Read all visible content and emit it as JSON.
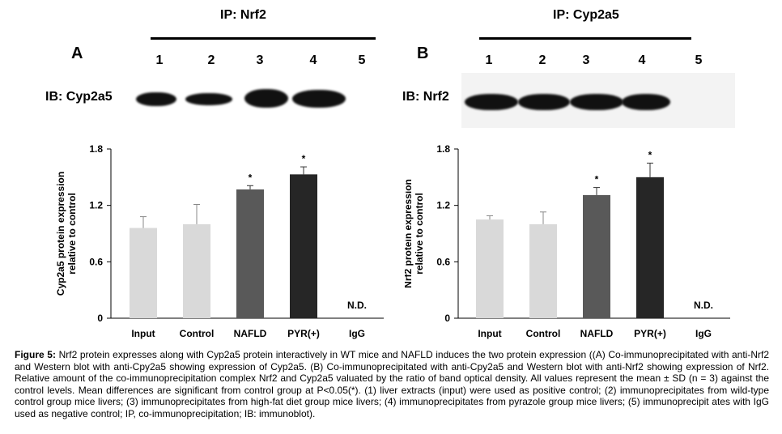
{
  "panel_a": {
    "letter": "A",
    "ip_label": "IP: Nrf2",
    "ib_label": "IB: Cyp2a5",
    "lanes": [
      "1",
      "2",
      "3",
      "4",
      "5"
    ]
  },
  "panel_b": {
    "letter": "B",
    "ip_label": "IP: Cyp2a5",
    "ib_label": "IB: Nrf2",
    "lanes": [
      "1",
      "2",
      "3",
      "4",
      "5"
    ]
  },
  "chart_data": [
    {
      "type": "bar",
      "ylabel": "Cyp2a5 protein expression relative to control",
      "ylabel_lines": [
        "Cyp2a5 protein expression",
        "relative to control"
      ],
      "categories": [
        "Input",
        "Control",
        "NAFLD",
        "PYR(+)",
        "IgG"
      ],
      "values": [
        0.96,
        1.0,
        1.37,
        1.53,
        null
      ],
      "errors": [
        0.12,
        0.21,
        0.04,
        0.08,
        null
      ],
      "significant": [
        false,
        false,
        true,
        true,
        false
      ],
      "annotations": [
        "",
        "",
        "*",
        "*",
        "N.D."
      ],
      "colors": [
        "#d9d9d9",
        "#d9d9d9",
        "#595959",
        "#262626",
        "#ffffff"
      ],
      "ylim": [
        0,
        1.8
      ],
      "yticks": [
        "0",
        "0.6",
        "1.2",
        "1.8"
      ],
      "grid": false
    },
    {
      "type": "bar",
      "ylabel": "Nrf2 protein expression relative to control",
      "ylabel_lines": [
        "Nrf2 protein expression",
        "relative to control"
      ],
      "categories": [
        "Input",
        "Control",
        "NAFLD",
        "PYR(+)",
        "IgG"
      ],
      "values": [
        1.05,
        1.0,
        1.31,
        1.5,
        null
      ],
      "errors": [
        0.04,
        0.13,
        0.08,
        0.15,
        null
      ],
      "significant": [
        false,
        false,
        true,
        true,
        false
      ],
      "annotations": [
        "",
        "",
        "*",
        "*",
        "N.D."
      ],
      "colors": [
        "#d9d9d9",
        "#d9d9d9",
        "#595959",
        "#262626",
        "#ffffff"
      ],
      "ylim": [
        0,
        1.8
      ],
      "yticks": [
        "0",
        "0.6",
        "1.2",
        "1.8"
      ],
      "grid": false
    }
  ],
  "caption": {
    "label": "Figure 5:",
    "text": " Nrf2 protein expresses along with Cyp2a5 protein interactively in WT mice and NAFLD induces the two protein expression ((A) Co-immunoprecipitated with anti-Nrf2 and Western blot with anti-Cpy2a5 showing expression of Cyp2a5. (B) Co-immunoprecipitated with anti-Cpy2a5 and Western blot with anti-Nrf2 showing expression of Nrf2. Relative amount of the co-immunoprecipitation complex Nrf2 and Cyp2a5 valuated by the ratio of band optical density. All values represent the mean ± SD (n = 3) against the control levels. Mean differences are significant from control group at P<0.05(*). (1) liver extracts (input) were used as positive control; (2) immunoprecipitates from wild-type control group mice livers; (3) immunoprecipitates from high-fat diet group mice livers; (4) immunoprecipitates from pyrazole group mice livers; (5) immunoprecipit ates with IgG used as negative control; IP, co-immunoprecipitation; IB: immunoblot)."
  }
}
